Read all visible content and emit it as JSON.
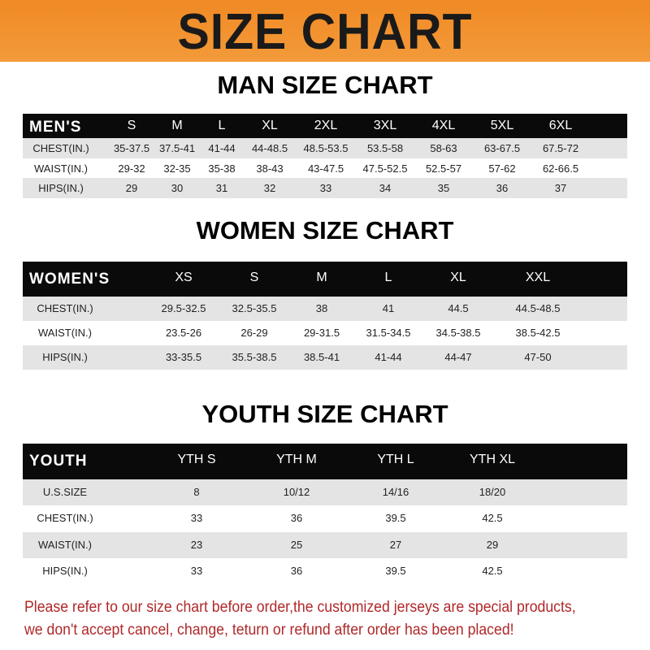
{
  "banner_title": "SIZE CHART",
  "men": {
    "title": "MAN SIZE CHART",
    "header": [
      "MEN'S",
      "S",
      "M",
      "L",
      "XL",
      "2XL",
      "3XL",
      "4XL",
      "5XL",
      "6XL"
    ],
    "rows": [
      [
        "CHEST(IN.)",
        "35-37.5",
        "37.5-41",
        "41-44",
        "44-48.5",
        "48.5-53.5",
        "53.5-58",
        "58-63",
        "63-67.5",
        "67.5-72"
      ],
      [
        "WAIST(IN.)",
        "29-32",
        "32-35",
        "35-38",
        "38-43",
        "43-47.5",
        "47.5-52.5",
        "52.5-57",
        "57-62",
        "62-66.5"
      ],
      [
        "HIPS(IN.)",
        "29",
        "30",
        "31",
        "32",
        "33",
        "34",
        "35",
        "36",
        "37"
      ]
    ]
  },
  "women": {
    "title": "WOMEN SIZE CHART",
    "header": [
      "WOMEN'S",
      "XS",
      "S",
      "M",
      "L",
      "XL",
      "XXL"
    ],
    "rows": [
      [
        "CHEST(IN.)",
        "29.5-32.5",
        "32.5-35.5",
        "38",
        "41",
        "44.5",
        "44.5-48.5"
      ],
      [
        "WAIST(IN.)",
        "23.5-26",
        "26-29",
        "29-31.5",
        "31.5-34.5",
        "34.5-38.5",
        "38.5-42.5"
      ],
      [
        "HIPS(IN.)",
        "33-35.5",
        "35.5-38.5",
        "38.5-41",
        "41-44",
        "44-47",
        "47-50"
      ]
    ]
  },
  "youth": {
    "title": "YOUTH SIZE CHART",
    "header": [
      "YOUTH",
      "YTH S",
      "YTH M",
      "YTH L",
      "YTH XL"
    ],
    "rows": [
      [
        "U.S.SIZE",
        "8",
        "10/12",
        "14/16",
        "18/20"
      ],
      [
        "CHEST(IN.)",
        "33",
        "36",
        "39.5",
        "42.5"
      ],
      [
        "WAIST(IN.)",
        "23",
        "25",
        "27",
        "29"
      ],
      [
        "HIPS(IN.)",
        "33",
        "36",
        "39.5",
        "42.5"
      ]
    ]
  },
  "notice_line1": "Please refer to our size chart before order,the customized jerseys are special products,",
  "notice_line2": "we don't accept cancel, change, teturn or refund after order has been placed!",
  "colors": {
    "banner": "#f08a24",
    "header": "#0a0a0a",
    "notice": "#b0282a"
  }
}
